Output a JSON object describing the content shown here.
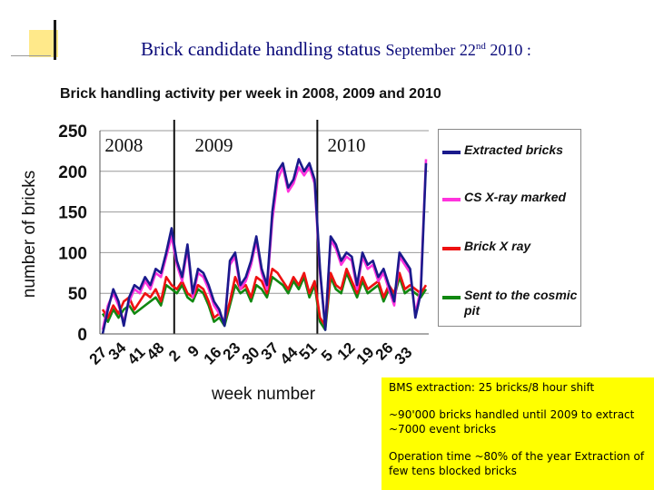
{
  "slide": {
    "title_main": "Brick candidate handling status",
    "title_date_prefix": "September 22",
    "title_date_sup": "nd",
    "title_date_suffix": " 2010 :"
  },
  "info": {
    "lines": [
      "BMS extraction: 25 bricks/8 hour shift",
      "~90'000 bricks handled until 2009 to extract ~7000 event bricks",
      "Operation time ~80% of the year Extraction of few tens blocked bricks"
    ]
  },
  "colors": {
    "extracted": "#1a1a8c",
    "cs_xray": "#ff33dd",
    "brick_xray": "#ee1111",
    "cosmic": "#118811"
  },
  "chart_data": {
    "type": "line",
    "title": "Brick handling activity per week in 2008, 2009 and 2010",
    "xlabel": "week number",
    "ylabel": "number of bricks",
    "ylim": [
      0,
      250
    ],
    "yticks": [
      0,
      50,
      100,
      150,
      200,
      250
    ],
    "grid": "horizontal",
    "legend": "right",
    "x_tick_labels": [
      "27",
      "34",
      "41",
      "48",
      "2",
      "9",
      "16",
      "23",
      "30",
      "37",
      "44",
      "51",
      "5",
      "12",
      "19",
      "26",
      "33"
    ],
    "year_labels": [
      {
        "label": "2008",
        "at_week_index": 4
      },
      {
        "label": "2009",
        "at_week_index": 21
      },
      {
        "label": "2010",
        "at_week_index": 46
      }
    ],
    "year_dividers": [
      13,
      40
    ],
    "series": [
      {
        "name": "Extracted bricks",
        "color": "#1a1a8c",
        "values": [
          0,
          30,
          55,
          40,
          10,
          45,
          60,
          55,
          70,
          60,
          80,
          75,
          100,
          130,
          90,
          70,
          110,
          50,
          80,
          75,
          60,
          40,
          30,
          10,
          90,
          100,
          60,
          70,
          90,
          120,
          80,
          60,
          150,
          200,
          210,
          180,
          190,
          215,
          200,
          210,
          190,
          80,
          5,
          120,
          110,
          90,
          100,
          95,
          60,
          100,
          85,
          90,
          70,
          80,
          60,
          40,
          100,
          90,
          80,
          20,
          50,
          210
        ]
      },
      {
        "name": "CS X-ray marked",
        "color": "#ff33dd",
        "values": [
          5,
          35,
          50,
          35,
          15,
          40,
          55,
          50,
          65,
          55,
          75,
          70,
          95,
          120,
          85,
          65,
          105,
          45,
          75,
          70,
          55,
          35,
          25,
          15,
          85,
          95,
          55,
          65,
          85,
          115,
          75,
          55,
          140,
          190,
          205,
          175,
          185,
          205,
          195,
          205,
          185,
          75,
          10,
          115,
          105,
          85,
          95,
          90,
          55,
          95,
          80,
          85,
          65,
          75,
          55,
          35,
          95,
          85,
          75,
          25,
          55,
          215
        ]
      },
      {
        "name": "Brick X ray",
        "color": "#ee1111",
        "values": [
          30,
          20,
          35,
          25,
          40,
          45,
          30,
          40,
          50,
          45,
          55,
          40,
          70,
          60,
          55,
          65,
          50,
          45,
          60,
          55,
          40,
          20,
          25,
          15,
          40,
          70,
          55,
          60,
          45,
          70,
          65,
          50,
          80,
          75,
          65,
          55,
          70,
          60,
          75,
          50,
          65,
          20,
          10,
          75,
          60,
          55,
          80,
          65,
          50,
          70,
          55,
          60,
          65,
          45,
          60,
          50,
          75,
          55,
          60,
          55,
          50,
          60
        ]
      },
      {
        "name": "Sent to the cosmic pit",
        "color": "#118811",
        "values": [
          25,
          15,
          30,
          20,
          30,
          35,
          25,
          30,
          35,
          40,
          45,
          35,
          60,
          55,
          50,
          60,
          45,
          40,
          55,
          50,
          35,
          15,
          20,
          10,
          35,
          60,
          50,
          55,
          40,
          60,
          55,
          45,
          70,
          65,
          60,
          50,
          65,
          55,
          70,
          45,
          60,
          15,
          5,
          70,
          55,
          50,
          75,
          60,
          45,
          65,
          50,
          55,
          60,
          40,
          55,
          45,
          70,
          50,
          55,
          50,
          45,
          55
        ]
      }
    ]
  }
}
